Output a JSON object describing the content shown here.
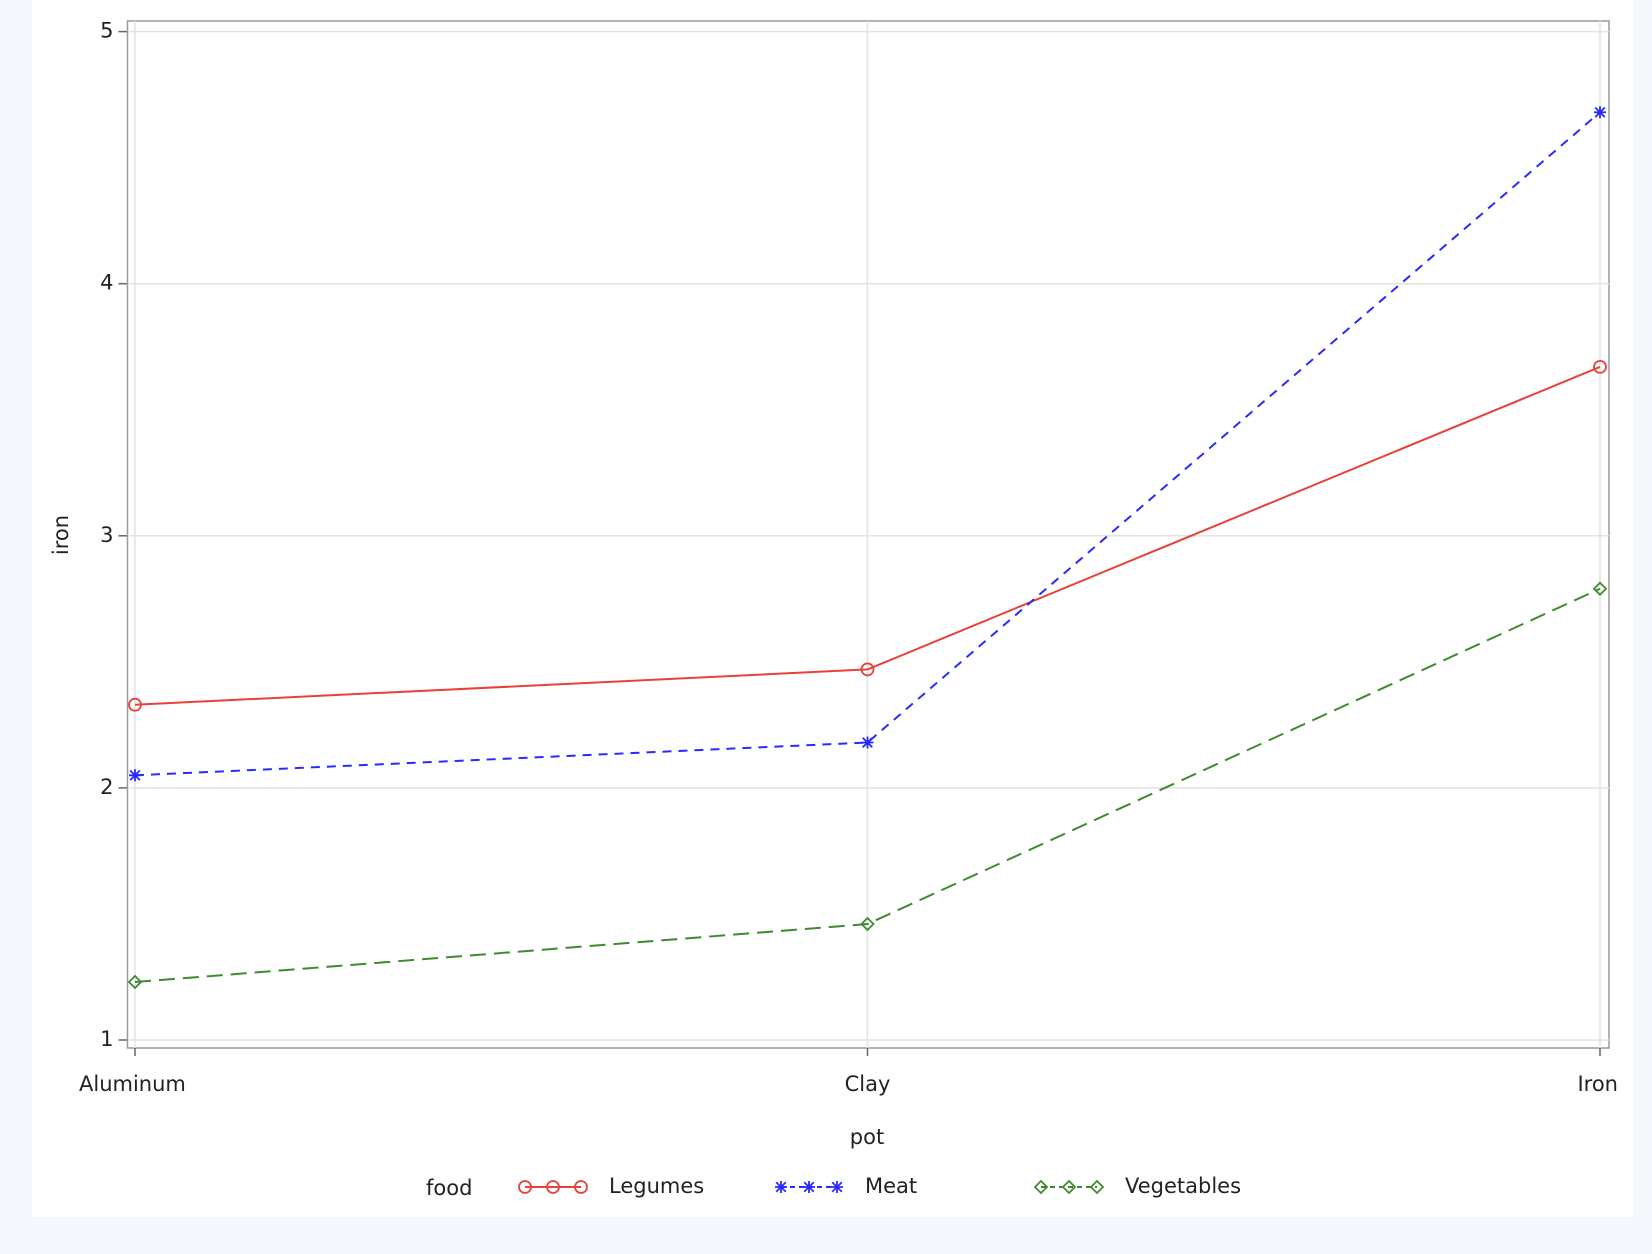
{
  "chart_data": {
    "type": "line",
    "x_label": "pot",
    "y_label": "iron",
    "legend_title": "food",
    "categories": [
      "Aluminum",
      "Clay",
      "Iron"
    ],
    "series": [
      {
        "name": "Legumes",
        "color": "#e8413c",
        "marker": "circle",
        "dash": "none",
        "values": [
          2.33,
          2.47,
          3.67
        ]
      },
      {
        "name": "Meat",
        "color": "#2a2aff",
        "marker": "star",
        "dash": "9 7",
        "values": [
          2.05,
          2.18,
          4.68
        ]
      },
      {
        "name": "Vegetables",
        "color": "#3f8a2f",
        "marker": "diamond",
        "dash": "16 8",
        "values": [
          1.23,
          1.46,
          2.79
        ]
      }
    ],
    "ylim": [
      1,
      5
    ],
    "yticks": [
      1,
      2,
      3,
      4,
      5
    ],
    "grid": true,
    "legend": "bottom"
  }
}
